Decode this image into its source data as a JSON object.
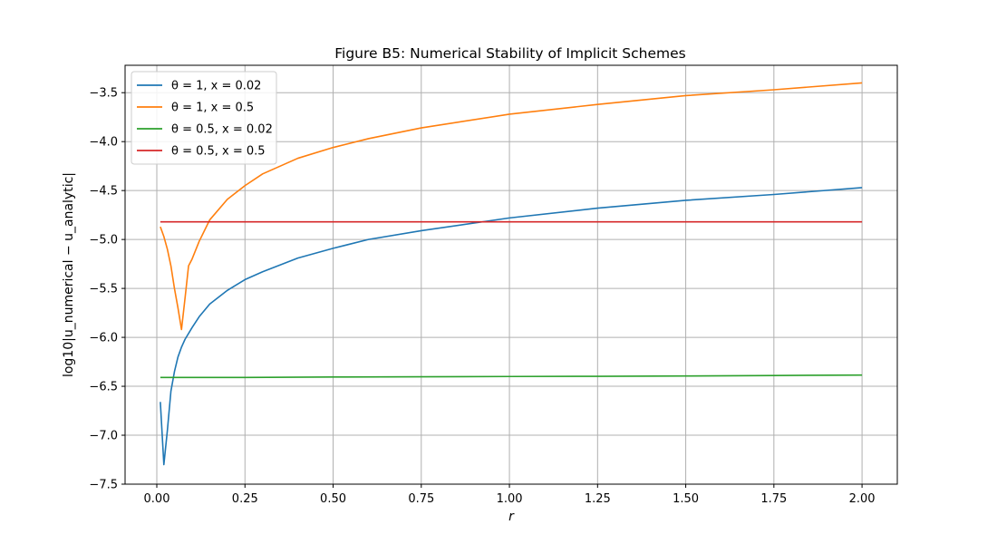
{
  "chart_data": {
    "type": "line",
    "title": "Figure B5: Numerical Stability of Implicit Schemes",
    "xlabel": "r",
    "ylabel": "log10|u_numerical − u_analytic|",
    "xlim": [
      -0.09,
      2.1
    ],
    "ylim": [
      -7.5,
      -3.22
    ],
    "xticks": [
      0.0,
      0.25,
      0.5,
      0.75,
      1.0,
      1.25,
      1.5,
      1.75,
      2.0
    ],
    "xtick_labels": [
      "0.00",
      "0.25",
      "0.50",
      "0.75",
      "1.00",
      "1.25",
      "1.50",
      "1.75",
      "2.00"
    ],
    "yticks": [
      -7.5,
      -7.0,
      -6.5,
      -6.0,
      -5.5,
      -5.0,
      -4.5,
      -4.0,
      -3.5
    ],
    "ytick_labels": [
      "−7.5",
      "−7.0",
      "−6.5",
      "−6.0",
      "−5.5",
      "−5.0",
      "−4.5",
      "−4.0",
      "−3.5"
    ],
    "grid": true,
    "legend_position": "top-left",
    "series": [
      {
        "name": "θ = 1, x = 0.02",
        "color": "#1f77b4",
        "x": [
          0.01,
          0.02,
          0.03,
          0.04,
          0.05,
          0.06,
          0.07,
          0.08,
          0.1,
          0.12,
          0.15,
          0.2,
          0.25,
          0.3,
          0.4,
          0.5,
          0.6,
          0.75,
          1.0,
          1.25,
          1.5,
          1.75,
          2.0
        ],
        "y": [
          -6.66,
          -7.3,
          -6.95,
          -6.55,
          -6.35,
          -6.2,
          -6.1,
          -6.02,
          -5.9,
          -5.79,
          -5.66,
          -5.52,
          -5.41,
          -5.33,
          -5.19,
          -5.09,
          -5.0,
          -4.91,
          -4.78,
          -4.68,
          -4.6,
          -4.54,
          -4.47
        ]
      },
      {
        "name": "θ = 1, x = 0.5",
        "color": "#ff7f0e",
        "x": [
          0.01,
          0.02,
          0.03,
          0.04,
          0.05,
          0.06,
          0.07,
          0.08,
          0.09,
          0.1,
          0.12,
          0.15,
          0.2,
          0.25,
          0.3,
          0.4,
          0.5,
          0.6,
          0.75,
          1.0,
          1.25,
          1.5,
          1.75,
          2.0
        ],
        "y": [
          -4.87,
          -4.97,
          -5.1,
          -5.27,
          -5.5,
          -5.7,
          -5.92,
          -5.6,
          -5.27,
          -5.2,
          -5.02,
          -4.8,
          -4.59,
          -4.45,
          -4.33,
          -4.17,
          -4.06,
          -3.97,
          -3.86,
          -3.72,
          -3.62,
          -3.53,
          -3.47,
          -3.4
        ]
      },
      {
        "name": "θ = 0.5, x = 0.02",
        "color": "#2ca02c",
        "x": [
          0.01,
          0.25,
          0.5,
          0.75,
          1.0,
          1.25,
          1.5,
          1.75,
          2.0
        ],
        "y": [
          -6.41,
          -6.41,
          -6.405,
          -6.403,
          -6.4,
          -6.398,
          -6.395,
          -6.39,
          -6.385
        ]
      },
      {
        "name": "θ = 0.5, x = 0.5",
        "color": "#d62728",
        "x": [
          0.01,
          0.5,
          1.0,
          1.5,
          2.0
        ],
        "y": [
          -4.82,
          -4.82,
          -4.82,
          -4.82,
          -4.82
        ]
      }
    ]
  }
}
